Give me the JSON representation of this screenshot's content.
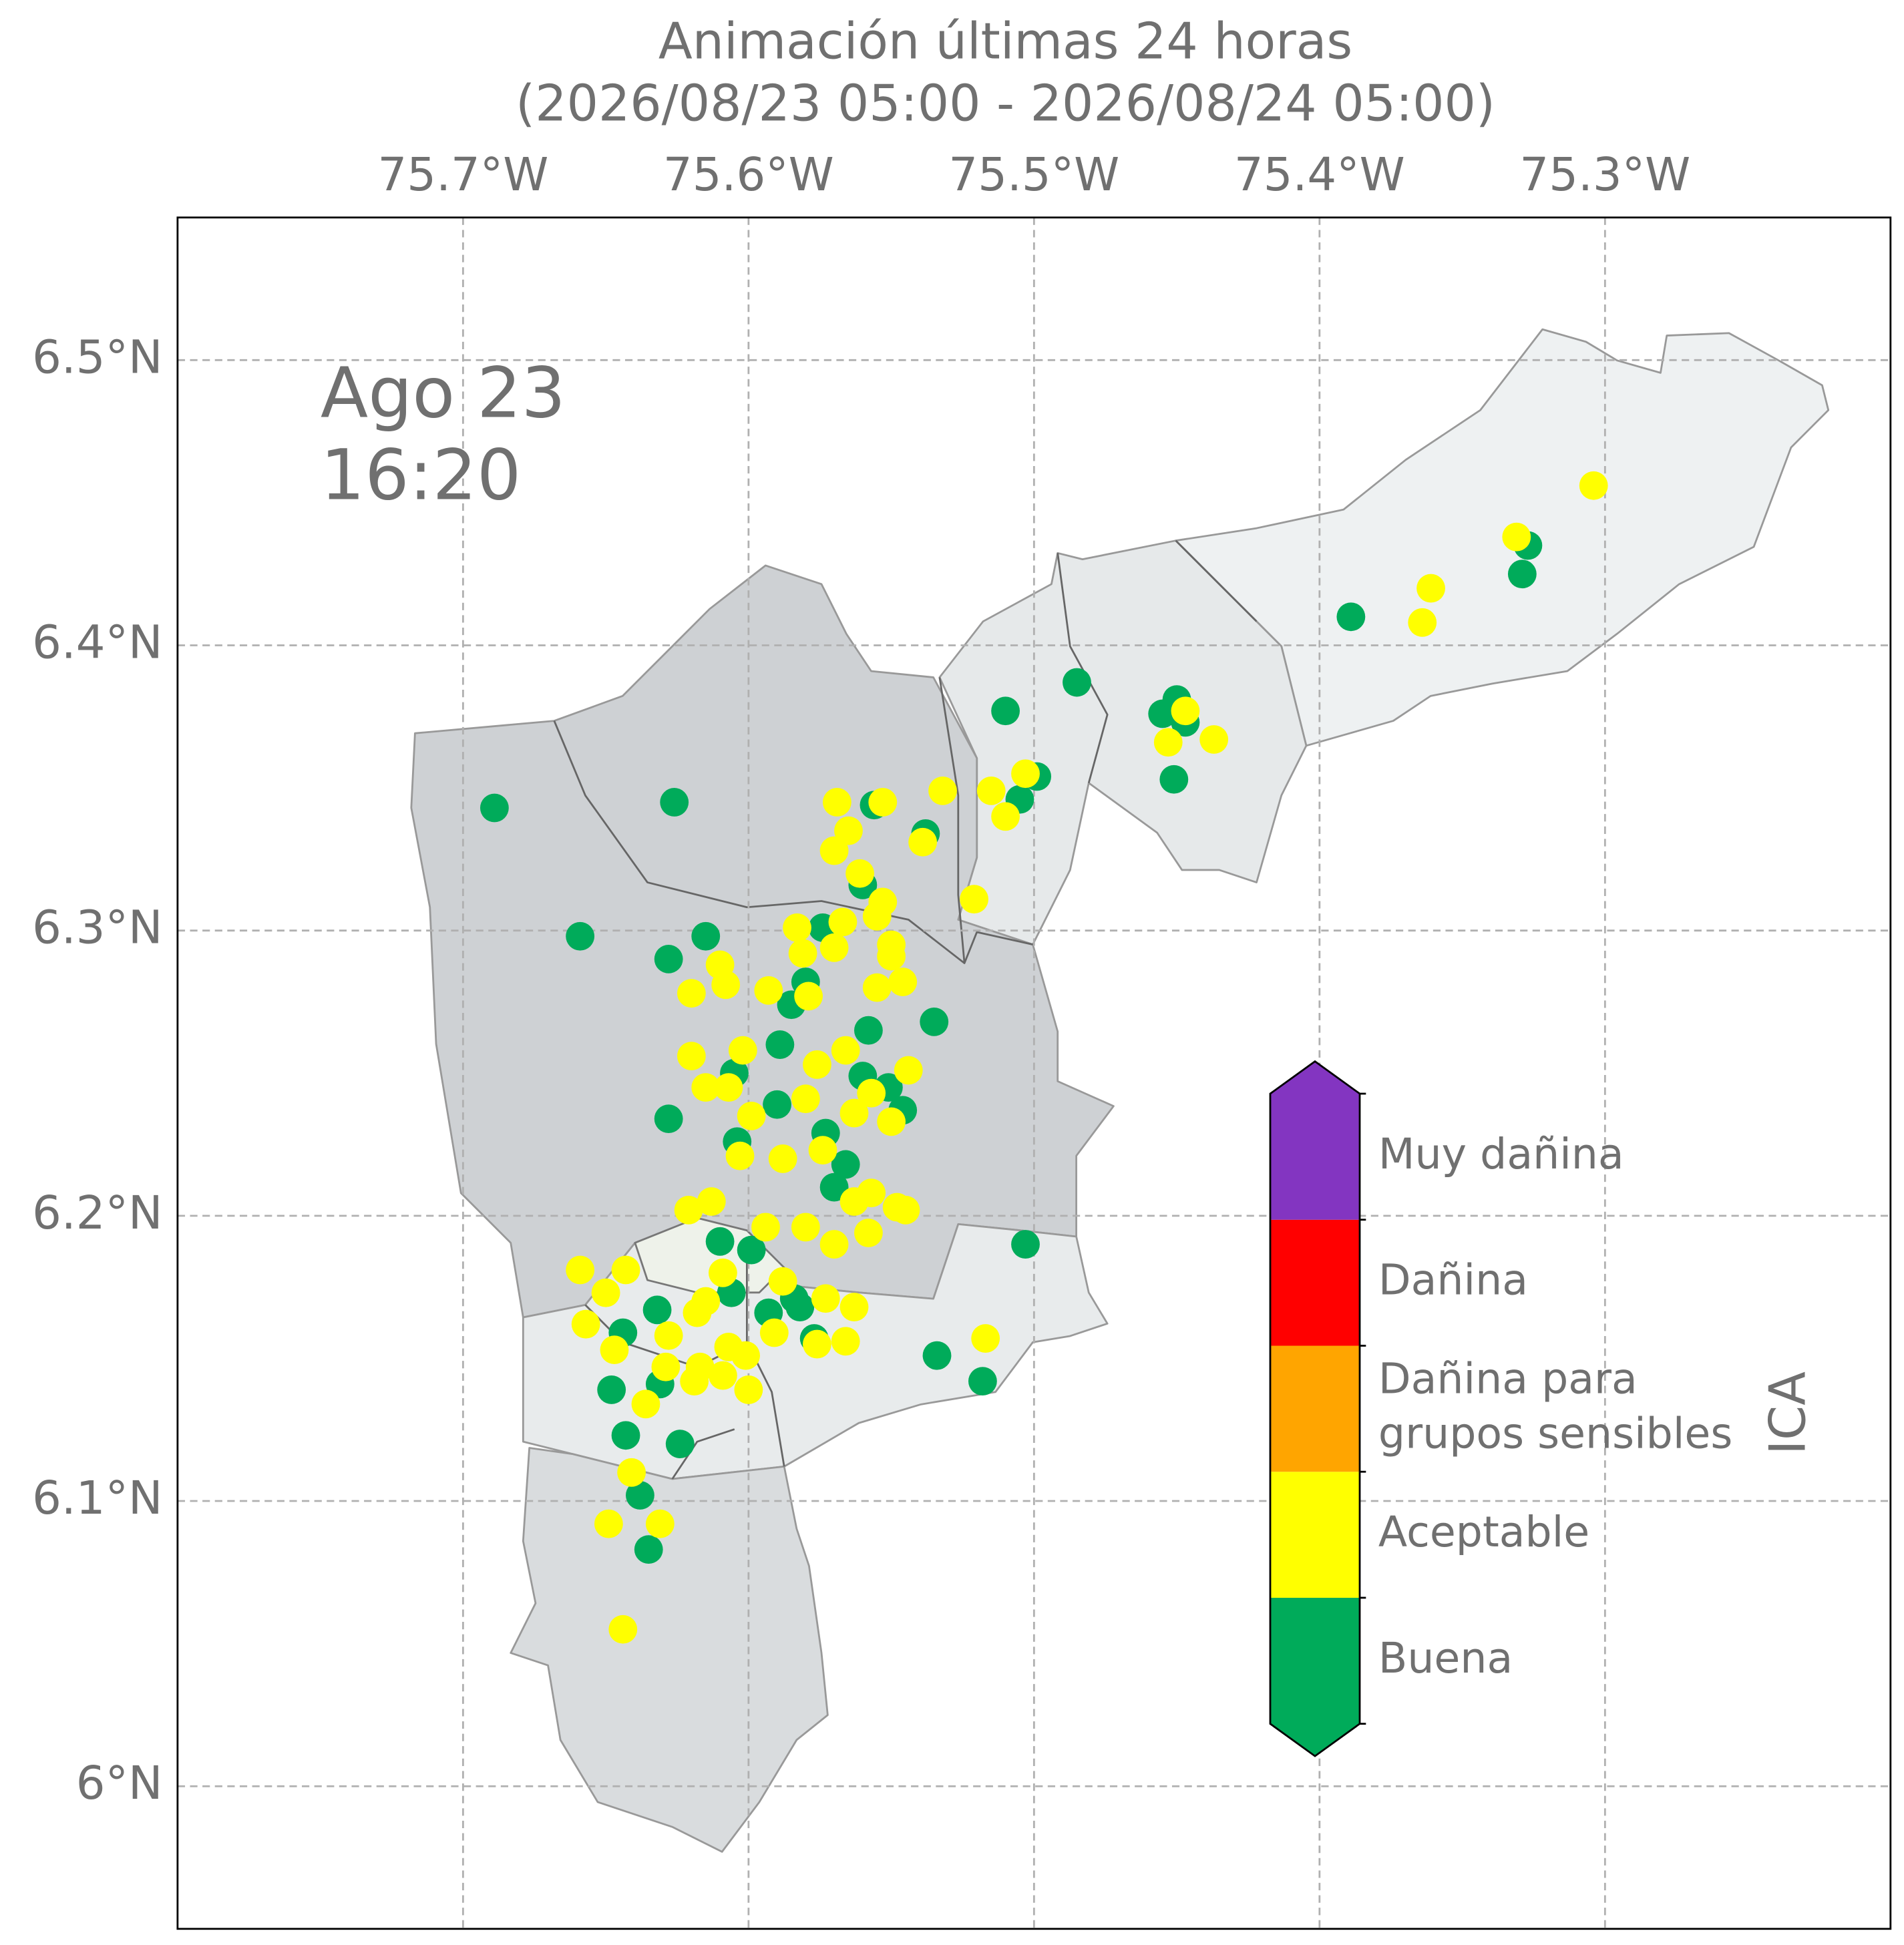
{
  "chart_data": {
    "type": "scatter",
    "title": [
      "Animación últimas 24 horas",
      "(2026/08/23 05:00 - 2026/08/24 05:00)"
    ],
    "annotation": [
      "Ago 23",
      "16:20"
    ],
    "xlim": [
      -75.8,
      -75.2
    ],
    "ylim": [
      5.95,
      6.55
    ],
    "xticks": [
      {
        "value": -75.7,
        "label": "75.7°W"
      },
      {
        "value": -75.6,
        "label": "75.6°W"
      },
      {
        "value": -75.5,
        "label": "75.5°W"
      },
      {
        "value": -75.4,
        "label": "75.4°W"
      },
      {
        "value": -75.3,
        "label": "75.3°W"
      }
    ],
    "yticks": [
      {
        "value": 6.0,
        "label": "6°N"
      },
      {
        "value": 6.1,
        "label": "6.1°N"
      },
      {
        "value": 6.2,
        "label": "6.2°N"
      },
      {
        "value": 6.3,
        "label": "6.3°N"
      },
      {
        "value": 6.4,
        "label": "6.4°N"
      },
      {
        "value": 6.5,
        "label": "6.5°N"
      }
    ],
    "grid": true,
    "colorbar_label": "ICA",
    "series": [
      {
        "name": [
          "Buena"
        ],
        "color": "#00ab5a",
        "x": [
          -75.689,
          -75.626,
          -75.659,
          -75.628,
          -75.615,
          -75.628,
          -75.605,
          -75.604,
          -75.59,
          -75.589,
          -75.585,
          -75.58,
          -75.574,
          -75.56,
          -75.556,
          -75.538,
          -75.535,
          -75.558,
          -75.56,
          -75.551,
          -75.546,
          -75.573,
          -75.566,
          -75.57,
          -75.61,
          -75.599,
          -75.606,
          -75.593,
          -75.584,
          -75.582,
          -75.577,
          -75.632,
          -75.644,
          -75.648,
          -75.631,
          -75.643,
          -75.624,
          -75.638,
          -75.635,
          -75.534,
          -75.518,
          -75.503,
          -75.51,
          -75.499,
          -75.505,
          -75.485,
          -75.455,
          -75.45,
          -75.447,
          -75.451,
          -75.389,
          -75.327,
          -75.329
        ],
        "y": [
          6.343,
          6.345,
          6.298,
          6.29,
          6.298,
          6.234,
          6.25,
          6.226,
          6.239,
          6.26,
          6.274,
          6.282,
          6.301,
          6.316,
          6.344,
          6.334,
          6.268,
          6.265,
          6.249,
          6.245,
          6.237,
          6.229,
          6.218,
          6.21,
          6.191,
          6.188,
          6.173,
          6.166,
          6.171,
          6.168,
          6.157,
          6.167,
          6.159,
          6.139,
          6.141,
          6.123,
          6.12,
          6.102,
          6.083,
          6.151,
          6.142,
          6.19,
          6.377,
          6.354,
          6.346,
          6.387,
          6.376,
          6.381,
          6.373,
          6.353,
          6.41,
          6.435,
          6.425
        ]
      },
      {
        "name": [
          "Aceptable"
        ],
        "color": "#ffff00",
        "x": [
          -75.304,
          -75.361,
          -75.364,
          -75.331,
          -75.453,
          -75.437,
          -75.447,
          -75.532,
          -75.515,
          -75.503,
          -75.51,
          -75.539,
          -75.521,
          -75.569,
          -75.565,
          -75.57,
          -75.553,
          -75.561,
          -75.553,
          -75.555,
          -75.567,
          -75.583,
          -75.581,
          -75.57,
          -75.55,
          -75.55,
          -75.61,
          -75.608,
          -75.62,
          -75.555,
          -75.546,
          -75.593,
          -75.579,
          -75.62,
          -75.602,
          -75.576,
          -75.566,
          -75.544,
          -75.615,
          -75.607,
          -75.599,
          -75.58,
          -75.557,
          -75.563,
          -75.55,
          -75.588,
          -75.603,
          -75.574,
          -75.557,
          -75.563,
          -75.548,
          -75.545,
          -75.621,
          -75.613,
          -75.594,
          -75.58,
          -75.57,
          -75.558,
          -75.659,
          -75.643,
          -75.65,
          -75.609,
          -75.588,
          -75.573,
          -75.563,
          -75.615,
          -75.618,
          -75.657,
          -75.628,
          -75.591,
          -75.566,
          -75.576,
          -75.647,
          -75.607,
          -75.601,
          -75.617,
          -75.629,
          -75.609,
          -75.619,
          -75.6,
          -75.636,
          -75.517,
          -75.641,
          -75.649,
          -75.631,
          -75.644
        ],
        "y": [
          6.456,
          6.42,
          6.408,
          6.438,
          6.366,
          6.367,
          6.377,
          6.349,
          6.349,
          6.355,
          6.34,
          6.331,
          6.311,
          6.345,
          6.335,
          6.328,
          6.345,
          6.32,
          6.31,
          6.305,
          6.303,
          6.301,
          6.292,
          6.294,
          6.295,
          6.291,
          6.288,
          6.281,
          6.278,
          6.28,
          6.282,
          6.279,
          6.277,
          6.256,
          6.258,
          6.253,
          6.258,
          6.251,
          6.245,
          6.245,
          6.235,
          6.241,
          6.243,
          6.236,
          6.233,
          6.22,
          6.221,
          6.223,
          6.208,
          6.205,
          6.203,
          6.202,
          6.202,
          6.205,
          6.196,
          6.196,
          6.19,
          6.194,
          6.181,
          6.181,
          6.173,
          6.18,
          6.177,
          6.171,
          6.168,
          6.17,
          6.166,
          6.162,
          6.158,
          6.159,
          6.156,
          6.155,
          6.153,
          6.154,
          6.151,
          6.147,
          6.147,
          6.144,
          6.142,
          6.139,
          6.134,
          6.157,
          6.11,
          6.092,
          6.092,
          6.055
        ]
      },
      {
        "name": [
          "Dañina para",
          "grupos sensibles"
        ],
        "color": "#ffa500",
        "x": [],
        "y": []
      },
      {
        "name": [
          "Dañina"
        ],
        "color": "#ff0000",
        "x": [],
        "y": []
      },
      {
        "name": [
          "Muy dañina"
        ],
        "color": "#8335c1",
        "x": [],
        "y": []
      }
    ]
  }
}
